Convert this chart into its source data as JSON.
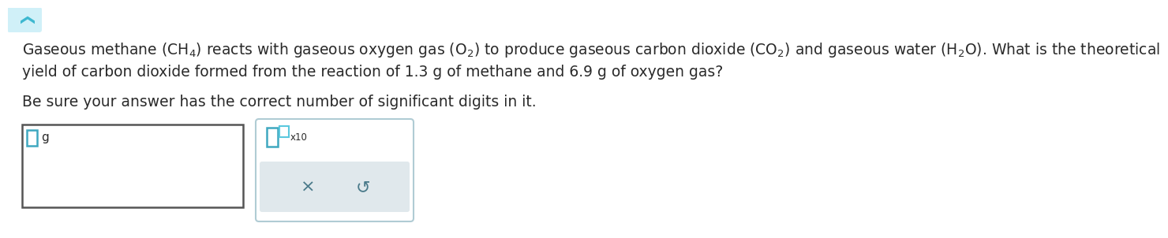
{
  "bg_color": "#ffffff",
  "text_color": "#2a2a2a",
  "line1": "Gaseous methane $\\left(\\mathrm{CH_4}\\right)$ reacts with gaseous oxygen gas $\\left(\\mathrm{O_2}\\right)$ to produce gaseous carbon dioxide $\\left(\\mathrm{CO_2}\\right)$ and gaseous water $\\left(\\mathrm{H_2O}\\right)$. What is the theoretical",
  "line2": "yield of carbon dioxide formed from the reaction of 1.3 g of methane and 6.9 g of oxygen gas?",
  "line3": "Be sure your answer has the correct number of significant digits in it.",
  "accent_color": "#3fa8c0",
  "accent_color2": "#5bc8de",
  "box1_border": "#555555",
  "box2_border": "#b0ccd4",
  "gray_bg": "#e0e8ec",
  "symbol_color": "#4a7a8a",
  "x_symbol": "×",
  "refresh_symbol": "↺",
  "x10_label": "x10",
  "chevron_color": "#3db8d0",
  "font_size_main": 13.5,
  "font_size_small": 9
}
